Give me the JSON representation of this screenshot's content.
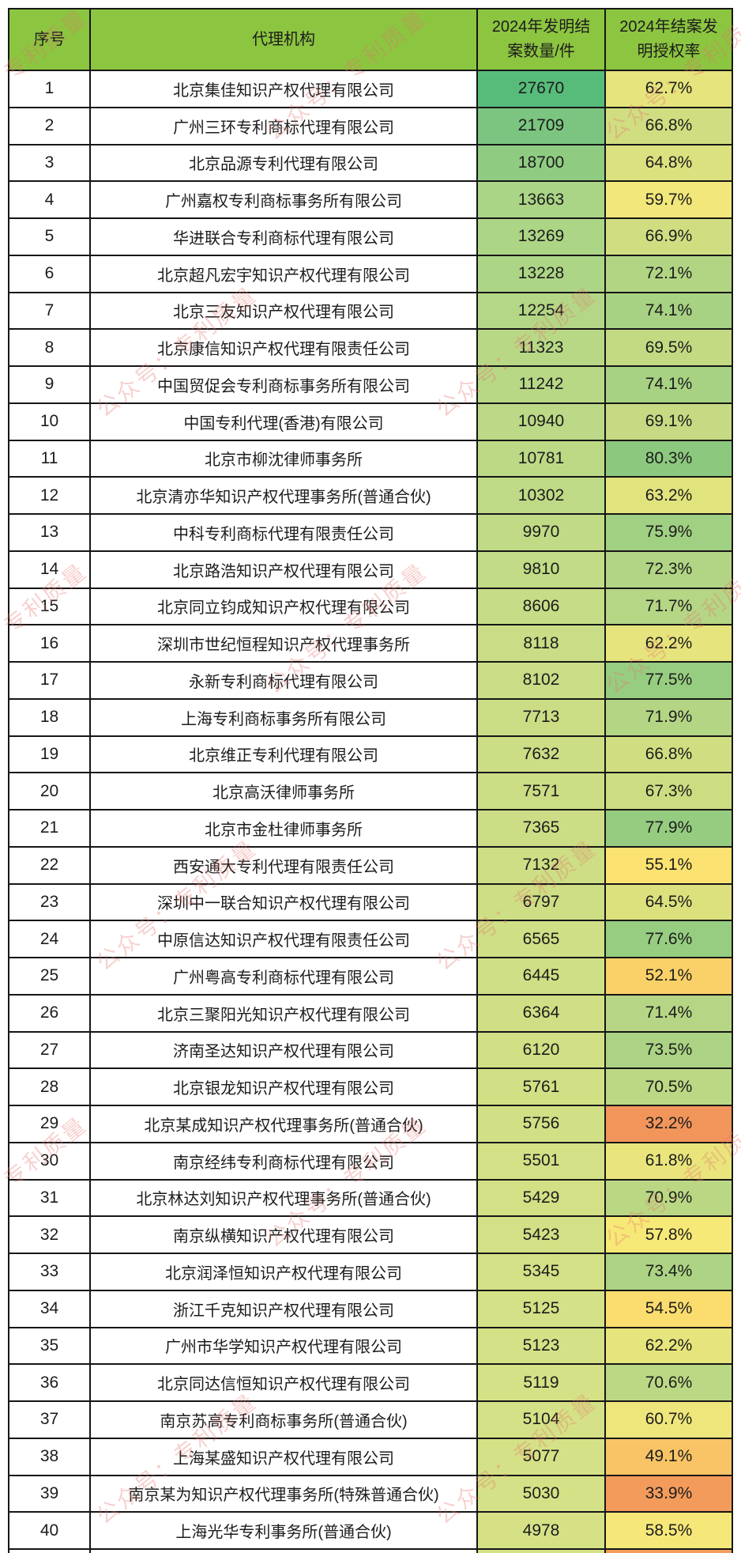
{
  "chart_data": {
    "type": "table",
    "columns": [
      "序号",
      "代理机构",
      "2024年发明结案数量/件",
      "2024年结案发明授权率"
    ],
    "rows": [
      {
        "rank": "1",
        "agency": "北京集佳知识产权代理有限公司",
        "count": "27670",
        "rate": "62.7%",
        "count_color": "#57BB7A",
        "rate_color": "#E5E47D"
      },
      {
        "rank": "2",
        "agency": "广州三环专利商标代理有限公司",
        "count": "21709",
        "rate": "66.8%",
        "count_color": "#7BC580",
        "rate_color": "#D0DE81"
      },
      {
        "rank": "3",
        "agency": "北京品源专利代理有限公司",
        "count": "18700",
        "rate": "64.8%",
        "count_color": "#8FCC82",
        "rate_color": "#DBE17E"
      },
      {
        "rank": "4",
        "agency": "广州嘉权专利商标事务所有限公司",
        "count": "13663",
        "rate": "59.7%",
        "count_color": "#ABD586",
        "rate_color": "#F1E77A"
      },
      {
        "rank": "5",
        "agency": "华进联合专利商标代理有限公司",
        "count": "13269",
        "rate": "66.9%",
        "count_color": "#ADD586",
        "rate_color": "#D0DE81"
      },
      {
        "rank": "6",
        "agency": "北京超凡宏宇知识产权代理有限公司",
        "count": "13228",
        "rate": "72.1%",
        "count_color": "#ADD586",
        "rate_color": "#B2D584"
      },
      {
        "rank": "7",
        "agency": "北京三友知识产权代理有限公司",
        "count": "12254",
        "rate": "74.1%",
        "count_color": "#B3D786",
        "rate_color": "#A8D283"
      },
      {
        "rank": "8",
        "agency": "北京康信知识产权代理有限责任公司",
        "count": "11323",
        "rate": "69.5%",
        "count_color": "#B8D886",
        "rate_color": "#C3DA83"
      },
      {
        "rank": "9",
        "agency": "中国贸促会专利商标事务所有限公司",
        "count": "11242",
        "rate": "74.1%",
        "count_color": "#B8D886",
        "rate_color": "#A8D283"
      },
      {
        "rank": "10",
        "agency": "中国专利代理(香港)有限公司",
        "count": "10940",
        "rate": "69.1%",
        "count_color": "#BBD986",
        "rate_color": "#C5DA83"
      },
      {
        "rank": "11",
        "agency": "北京市柳沈律师事务所",
        "count": "10781",
        "rate": "80.3%",
        "count_color": "#BCD986",
        "rate_color": "#8CC97E"
      },
      {
        "rank": "12",
        "agency": "北京清亦华知识产权代理事务所(普通合伙)",
        "count": "10302",
        "rate": "63.2%",
        "count_color": "#BEDA86",
        "rate_color": "#E1E37D"
      },
      {
        "rank": "13",
        "agency": "中科专利商标代理有限责任公司",
        "count": "9970",
        "rate": "75.9%",
        "count_color": "#C0DA86",
        "rate_color": "#A0D082"
      },
      {
        "rank": "14",
        "agency": "北京路浩知识产权代理有限公司",
        "count": "9810",
        "rate": "72.3%",
        "count_color": "#C1DB86",
        "rate_color": "#B1D584"
      },
      {
        "rank": "15",
        "agency": "北京同立钧成知识产权代理有限公司",
        "count": "8606",
        "rate": "71.7%",
        "count_color": "#C6DC86",
        "rate_color": "#B5D685"
      },
      {
        "rank": "16",
        "agency": "深圳市世纪恒程知识产权代理事务所",
        "count": "8118",
        "rate": "62.2%",
        "count_color": "#C8DD86",
        "rate_color": "#E6E47C"
      },
      {
        "rank": "17",
        "agency": "永新专利商标代理有限公司",
        "count": "8102",
        "rate": "77.5%",
        "count_color": "#C8DD86",
        "rate_color": "#97CD80"
      },
      {
        "rank": "18",
        "agency": "上海专利商标事务所有限公司",
        "count": "7713",
        "rate": "71.9%",
        "count_color": "#CADD85",
        "rate_color": "#B4D684"
      },
      {
        "rank": "19",
        "agency": "北京维正专利代理有限公司",
        "count": "7632",
        "rate": "66.8%",
        "count_color": "#CBDD85",
        "rate_color": "#D0DE81"
      },
      {
        "rank": "20",
        "agency": "北京高沃律师事务所",
        "count": "7571",
        "rate": "67.3%",
        "count_color": "#CBDD85",
        "rate_color": "#CCDC81"
      },
      {
        "rank": "21",
        "agency": "北京市金杜律师事务所",
        "count": "7365",
        "rate": "77.9%",
        "count_color": "#CCDE85",
        "rate_color": "#95CC80"
      },
      {
        "rank": "22",
        "agency": "西安通大专利代理有限责任公司",
        "count": "7132",
        "rate": "55.1%",
        "count_color": "#CDDE85",
        "rate_color": "#FCE271"
      },
      {
        "rank": "23",
        "agency": "深圳中一联合知识产权代理有限公司",
        "count": "6797",
        "rate": "64.5%",
        "count_color": "#CEDE85",
        "rate_color": "#DCE17E"
      },
      {
        "rank": "24",
        "agency": "中原信达知识产权代理有限责任公司",
        "count": "6565",
        "rate": "77.6%",
        "count_color": "#CFDF85",
        "rate_color": "#96CD80"
      },
      {
        "rank": "25",
        "agency": "广州粤高专利商标代理有限公司",
        "count": "6445",
        "rate": "52.1%",
        "count_color": "#CFDF85",
        "rate_color": "#FAD168"
      },
      {
        "rank": "26",
        "agency": "北京三聚阳光知识产权代理有限公司",
        "count": "6364",
        "rate": "71.4%",
        "count_color": "#D0DF85",
        "rate_color": "#B6D685"
      },
      {
        "rank": "27",
        "agency": "济南圣达知识产权代理有限公司",
        "count": "6120",
        "rate": "73.5%",
        "count_color": "#D1DF85",
        "rate_color": "#ABD383"
      },
      {
        "rank": "28",
        "agency": "北京银龙知识产权代理有限公司",
        "count": "5761",
        "rate": "70.5%",
        "count_color": "#D2E085",
        "rate_color": "#BBD884"
      },
      {
        "rank": "29",
        "agency": "北京某成知识产权代理事务所(普通合伙)",
        "count": "5756",
        "rate": "32.2%",
        "count_color": "#D2E085",
        "rate_color": "#F2955B"
      },
      {
        "rank": "30",
        "agency": "南京经纬专利商标代理有限公司",
        "count": "5501",
        "rate": "61.8%",
        "count_color": "#D3E085",
        "rate_color": "#E9E57C"
      },
      {
        "rank": "31",
        "agency": "北京林达刘知识产权代理事务所(普通合伙)",
        "count": "5429",
        "rate": "70.9%",
        "count_color": "#D3E085",
        "rate_color": "#BAD884"
      },
      {
        "rank": "32",
        "agency": "南京纵横知识产权代理有限公司",
        "count": "5423",
        "rate": "57.8%",
        "count_color": "#D3E085",
        "rate_color": "#F7E977"
      },
      {
        "rank": "33",
        "agency": "北京润泽恒知识产权代理有限公司",
        "count": "5345",
        "rate": "73.4%",
        "count_color": "#D4E085",
        "rate_color": "#ACD383"
      },
      {
        "rank": "34",
        "agency": "浙江千克知识产权代理有限公司",
        "count": "5125",
        "rate": "54.5%",
        "count_color": "#D4E186",
        "rate_color": "#FBDC6E"
      },
      {
        "rank": "35",
        "agency": "广州市华学知识产权代理有限公司",
        "count": "5123",
        "rate": "62.2%",
        "count_color": "#D4E186",
        "rate_color": "#E6E47C"
      },
      {
        "rank": "36",
        "agency": "北京同达信恒知识产权代理有限公司",
        "count": "5119",
        "rate": "70.6%",
        "count_color": "#D4E186",
        "rate_color": "#BBD884"
      },
      {
        "rank": "37",
        "agency": "南京苏高专利商标事务所(普通合伙)",
        "count": "5104",
        "rate": "60.7%",
        "count_color": "#D5E186",
        "rate_color": "#EEE67B"
      },
      {
        "rank": "38",
        "agency": "上海某盛知识产权代理有限公司",
        "count": "5077",
        "rate": "49.1%",
        "count_color": "#D5E186",
        "rate_color": "#F8C466"
      },
      {
        "rank": "39",
        "agency": "南京某为知识产权代理事务所(特殊普通合伙)",
        "count": "5030",
        "rate": "33.9%",
        "count_color": "#D5E186",
        "rate_color": "#F39B5B"
      },
      {
        "rank": "40",
        "agency": "上海光华专利事务所(普通合伙)",
        "count": "4978",
        "rate": "58.5%",
        "count_color": "#D6E186",
        "rate_color": "#F5E879"
      }
    ],
    "partial_row": {
      "count_color": "#D6E186",
      "rate_color": "#F49D5B"
    }
  },
  "colors": {
    "header_bg": "#8CC540",
    "border": "#161616",
    "row_bg": "#FFFFFF"
  },
  "watermark": {
    "text": "公众号：专利质量",
    "color": "#E4746C",
    "opacity": "0.32"
  }
}
